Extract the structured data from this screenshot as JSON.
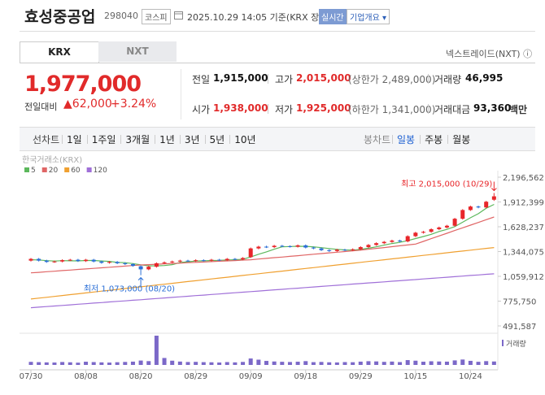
{
  "header": {
    "name": "효성중공업",
    "code": "298040",
    "market": "코스피",
    "time": "2025.10.29 14:05 기준(KRX 장중)",
    "realtime": "실시간",
    "company_info": "기업개요"
  },
  "tabs": [
    "KRX",
    "NXT"
  ],
  "nxt_link": "넥스트레이드(NXT)",
  "quote": {
    "price": "1,977,000",
    "change_label": "전일대비",
    "change": "62,000",
    "change_pct": "+3.24%"
  },
  "table": {
    "rows": [
      [
        {
          "label": "전일",
          "value": "1,915,000"
        },
        {
          "label": "고가",
          "value": "2,015,000",
          "note": "(상한가 2,489,000)"
        },
        {
          "label": "거래량",
          "value": "46,995"
        }
      ],
      [
        {
          "label": "시가",
          "value": "1,938,000"
        },
        {
          "label": "저가",
          "value": "1,925,000",
          "note": "(하한가 1,341,000)"
        },
        {
          "label": "거래대금",
          "value": "93,360",
          "unit": "백만"
        }
      ]
    ]
  },
  "periods": {
    "line_label": "선차트",
    "line": [
      "1일",
      "1주일",
      "3개월",
      "1년",
      "3년",
      "5년",
      "10년"
    ],
    "candle_label": "봉차트",
    "candle": [
      "일봉",
      "주봉",
      "월봉"
    ]
  },
  "chart_data": {
    "type": "candlestick",
    "title": "한국거래소(KRX)",
    "up_color": "#e8262a",
    "down_color": "#2b6fd6",
    "categories": [
      "07/30",
      null,
      null,
      null,
      null,
      null,
      null,
      "08/08",
      null,
      null,
      null,
      null,
      null,
      null,
      "08/20",
      null,
      null,
      null,
      null,
      null,
      null,
      "08/29",
      null,
      null,
      null,
      null,
      null,
      null,
      "09/09",
      null,
      null,
      null,
      null,
      null,
      null,
      "09/18",
      null,
      null,
      null,
      null,
      null,
      null,
      "09/29",
      null,
      null,
      null,
      null,
      null,
      null,
      "10/15",
      null,
      null,
      null,
      null,
      null,
      null,
      "10/24",
      null,
      null,
      null
    ],
    "open": [
      1240000,
      1260000,
      1240000,
      1225000,
      1230000,
      1245000,
      1250000,
      1235000,
      1250000,
      1230000,
      1215000,
      1225000,
      1210000,
      1200000,
      1175000,
      1140000,
      1170000,
      1210000,
      1220000,
      1230000,
      1240000,
      1235000,
      1245000,
      1240000,
      1250000,
      1245000,
      1260000,
      1255000,
      1280000,
      1380000,
      1400000,
      1395000,
      1410000,
      1405000,
      1400000,
      1415000,
      1390000,
      1380000,
      1360000,
      1350000,
      1365000,
      1360000,
      1370000,
      1395000,
      1420000,
      1440000,
      1455000,
      1470000,
      1460000,
      1520000,
      1560000,
      1570000,
      1600000,
      1620000,
      1640000,
      1720000,
      1820000,
      1860000,
      1850000,
      1938000
    ],
    "high": [
      1270000,
      1270000,
      1250000,
      1240000,
      1255000,
      1260000,
      1260000,
      1260000,
      1260000,
      1240000,
      1235000,
      1235000,
      1220000,
      1210000,
      1185000,
      1180000,
      1220000,
      1230000,
      1240000,
      1250000,
      1250000,
      1255000,
      1255000,
      1260000,
      1260000,
      1270000,
      1270000,
      1280000,
      1390000,
      1410000,
      1410000,
      1420000,
      1420000,
      1415000,
      1425000,
      1425000,
      1400000,
      1390000,
      1370000,
      1375000,
      1375000,
      1380000,
      1405000,
      1430000,
      1450000,
      1465000,
      1480000,
      1480000,
      1530000,
      1570000,
      1580000,
      1610000,
      1630000,
      1650000,
      1730000,
      1830000,
      1870000,
      1870000,
      1925000,
      2015000
    ],
    "low": [
      1230000,
      1230000,
      1215000,
      1215000,
      1220000,
      1235000,
      1225000,
      1225000,
      1220000,
      1205000,
      1205000,
      1200000,
      1190000,
      1170000,
      1073000,
      1130000,
      1160000,
      1200000,
      1210000,
      1220000,
      1225000,
      1225000,
      1230000,
      1230000,
      1235000,
      1235000,
      1245000,
      1245000,
      1270000,
      1370000,
      1385000,
      1385000,
      1395000,
      1390000,
      1390000,
      1380000,
      1370000,
      1350000,
      1340000,
      1340000,
      1350000,
      1350000,
      1360000,
      1385000,
      1410000,
      1430000,
      1445000,
      1450000,
      1450000,
      1510000,
      1550000,
      1560000,
      1590000,
      1610000,
      1630000,
      1710000,
      1810000,
      1840000,
      1840000,
      1925000
    ],
    "close": [
      1260000,
      1240000,
      1225000,
      1230000,
      1245000,
      1250000,
      1235000,
      1250000,
      1230000,
      1215000,
      1225000,
      1210000,
      1200000,
      1180000,
      1140000,
      1170000,
      1210000,
      1220000,
      1230000,
      1240000,
      1235000,
      1245000,
      1240000,
      1250000,
      1245000,
      1260000,
      1255000,
      1270000,
      1380000,
      1400000,
      1395000,
      1410000,
      1405000,
      1400000,
      1415000,
      1390000,
      1380000,
      1360000,
      1350000,
      1365000,
      1360000,
      1370000,
      1395000,
      1420000,
      1440000,
      1455000,
      1470000,
      1460000,
      1520000,
      1560000,
      1570000,
      1600000,
      1620000,
      1640000,
      1720000,
      1820000,
      1860000,
      1850000,
      1915000,
      1977000
    ],
    "series": [
      {
        "name": "5",
        "color": "#5cb85c",
        "values": [
          1250000,
          1248000,
          1240000,
          1235000,
          1240000,
          1238000,
          1237000,
          1242000,
          1242000,
          1236000,
          1231000,
          1219000,
          1216000,
          1206000,
          1191000,
          1181000,
          1180000,
          1184000,
          1194000,
          1218000,
          1227000,
          1236000,
          1238000,
          1242000,
          1243000,
          1248000,
          1250000,
          1256000,
          1282000,
          1313000,
          1340000,
          1371000,
          1398000,
          1402000,
          1405000,
          1404000,
          1398000,
          1389000,
          1379000,
          1369000,
          1363000,
          1361000,
          1368000,
          1382000,
          1398000,
          1418000,
          1436000,
          1449000,
          1469000,
          1493000,
          1516000,
          1542000,
          1574000,
          1598000,
          1630000,
          1680000,
          1732000,
          1778000,
          1841000,
          1884000
        ]
      },
      {
        "name": "20",
        "color": "#e06666",
        "values": [
          1100000,
          1106000,
          1113000,
          1119000,
          1126000,
          1132000,
          1139000,
          1145000,
          1151000,
          1158000,
          1164000,
          1171000,
          1177000,
          1184000,
          1190000,
          1194000,
          1199000,
          1203000,
          1207000,
          1211000,
          1216000,
          1220000,
          1224000,
          1229000,
          1233000,
          1237000,
          1241000,
          1246000,
          1250000,
          1258000,
          1266000,
          1274000,
          1281000,
          1289000,
          1297000,
          1305000,
          1313000,
          1321000,
          1329000,
          1337000,
          1344000,
          1352000,
          1360000,
          1370000,
          1380000,
          1390000,
          1400000,
          1410000,
          1420000,
          1430000,
          1461000,
          1492000,
          1523000,
          1554000,
          1585000,
          1616000,
          1647000,
          1678000,
          1709000,
          1740000
        ]
      },
      {
        "name": "60",
        "color": "#f0a030",
        "values": [
          800000,
          810000,
          820000,
          830000,
          840000,
          850000,
          860000,
          870000,
          880000,
          890000,
          900000,
          910000,
          920000,
          930000,
          940000,
          950000,
          960000,
          970000,
          980000,
          990000,
          1000000,
          1010000,
          1020000,
          1030000,
          1040000,
          1050000,
          1060000,
          1070000,
          1080000,
          1090000,
          1100000,
          1110000,
          1120000,
          1130000,
          1140000,
          1150000,
          1160000,
          1170000,
          1180000,
          1190000,
          1200000,
          1210000,
          1220000,
          1230000,
          1240000,
          1250000,
          1260000,
          1270000,
          1280000,
          1290000,
          1300000,
          1310000,
          1320000,
          1330000,
          1340000,
          1350000,
          1360000,
          1370000,
          1380000,
          1390000
        ]
      },
      {
        "name": "120",
        "color": "#a070d8",
        "values": [
          700000,
          707000,
          713000,
          720000,
          726000,
          733000,
          740000,
          746000,
          753000,
          759000,
          766000,
          773000,
          779000,
          786000,
          792000,
          799000,
          806000,
          812000,
          819000,
          825000,
          832000,
          839000,
          845000,
          852000,
          858000,
          865000,
          872000,
          878000,
          885000,
          891000,
          898000,
          905000,
          911000,
          918000,
          924000,
          931000,
          938000,
          944000,
          951000,
          957000,
          964000,
          971000,
          977000,
          984000,
          990000,
          997000,
          1004000,
          1010000,
          1017000,
          1023000,
          1030000,
          1037000,
          1043000,
          1050000,
          1056000,
          1063000,
          1070000,
          1076000,
          1083000,
          1089000
        ]
      }
    ],
    "volume": {
      "name": "거래량",
      "color": "#7b68c8",
      "values": [
        42000,
        38000,
        35000,
        33000,
        40000,
        36000,
        31000,
        44000,
        39000,
        35000,
        32000,
        37000,
        41000,
        45000,
        60000,
        52000,
        400000,
        95000,
        58000,
        46000,
        40000,
        42000,
        38000,
        36000,
        33000,
        39000,
        35000,
        41000,
        88000,
        72000,
        55000,
        47000,
        43000,
        40000,
        44000,
        52000,
        38000,
        41000,
        36000,
        34000,
        39000,
        37000,
        45000,
        51000,
        48000,
        42000,
        46000,
        39000,
        66000,
        58000,
        44000,
        50000,
        47000,
        45000,
        62000,
        74000,
        56000,
        43000,
        52000,
        46995
      ]
    },
    "ylim": [
      491587,
      2196562
    ],
    "yticks": [
      {
        "value": 491587,
        "label": "491,587"
      },
      {
        "value": 775750,
        "label": "775,750"
      },
      {
        "value": 1059912,
        "label": "1,059,912"
      },
      {
        "value": 1344075,
        "label": "1,344,075"
      },
      {
        "value": 1628237,
        "label": "1,628,237"
      },
      {
        "value": 1912399,
        "label": "1,912,399"
      },
      {
        "value": 2196562,
        "label": "2,196,562"
      }
    ],
    "annotations": [
      "최고 2,015,000 (10/29)",
      "최저 1,073,000 (08/20)"
    ]
  }
}
